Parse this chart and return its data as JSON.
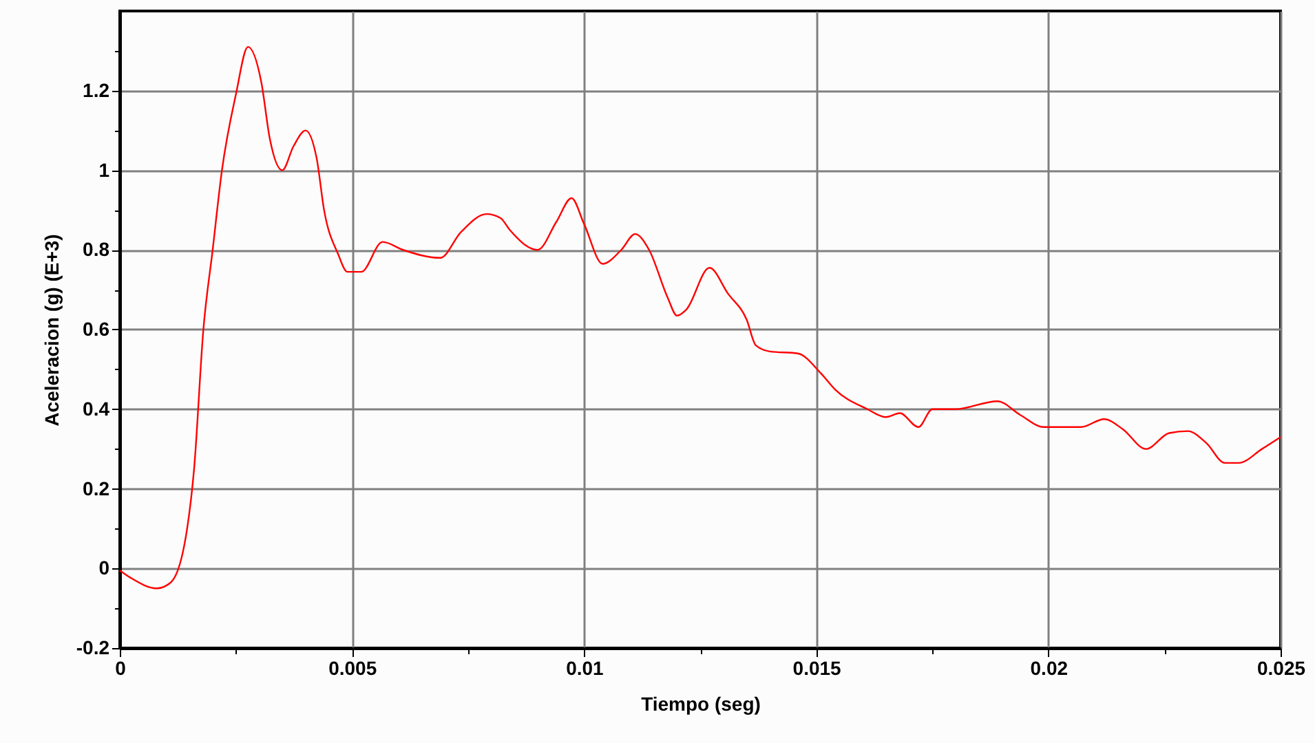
{
  "chart_data": {
    "type": "line",
    "xlabel": "Tiempo (seg)",
    "ylabel": "Aceleracion (g) (E+3)",
    "x": [
      0,
      0.00024,
      0.0008,
      0.0011,
      0.00145,
      0.0016,
      0.0018,
      0.002,
      0.0022,
      0.0025,
      0.00276,
      0.00305,
      0.00323,
      0.0035,
      0.00374,
      0.004,
      0.00424,
      0.0044,
      0.0047,
      0.0049,
      0.0052,
      0.00566,
      0.0061,
      0.0069,
      0.00735,
      0.0079,
      0.0082,
      0.0084,
      0.009,
      0.0094,
      0.00973,
      0.01,
      0.0104,
      0.0108,
      0.0111,
      0.0114,
      0.0118,
      0.012,
      0.0122,
      0.0127,
      0.0131,
      0.0135,
      0.0137,
      0.014,
      0.0146,
      0.0151,
      0.0154,
      0.0161,
      0.0165,
      0.0168,
      0.0172,
      0.0175,
      0.018,
      0.0189,
      0.0194,
      0.0199,
      0.0207,
      0.0212,
      0.0216,
      0.0221,
      0.0226,
      0.023,
      0.0234,
      0.0238,
      0.0241,
      0.0246,
      0.025
    ],
    "series": [
      {
        "color": "#ff0000",
        "values": [
          -0.005,
          -0.024,
          -0.05,
          -0.035,
          0.1,
          0.25,
          0.6,
          0.8,
          1.0,
          1.19,
          1.31,
          1.22,
          1.08,
          1.0,
          1.06,
          1.1,
          1.03,
          0.9,
          0.79,
          0.745,
          0.745,
          0.82,
          0.8,
          0.78,
          0.845,
          0.89,
          0.88,
          0.85,
          0.8,
          0.87,
          0.93,
          0.865,
          0.765,
          0.8,
          0.84,
          0.8,
          0.68,
          0.635,
          0.65,
          0.755,
          0.69,
          0.625,
          0.56,
          0.545,
          0.54,
          0.49,
          0.45,
          0.4,
          0.38,
          0.39,
          0.355,
          0.4,
          0.4,
          0.42,
          0.385,
          0.355,
          0.355,
          0.375,
          0.35,
          0.3,
          0.34,
          0.345,
          0.315,
          0.265,
          0.265,
          0.3,
          0.33
        ]
      }
    ],
    "xlim": [
      0,
      0.025
    ],
    "xticks": [
      0,
      {
        "value": 0.0025,
        "label": null
      },
      0.005,
      {
        "value": 0.0075,
        "label": null
      },
      0.01,
      {
        "value": 0.0125,
        "label": null
      },
      0.015,
      {
        "value": 0.0175,
        "label": null
      },
      0.02,
      {
        "value": 0.0225,
        "label": null
      },
      0.025
    ],
    "ylim": [
      -0.2,
      1.4
    ],
    "yticks": [
      -0.2,
      {
        "value": -0.1,
        "label": null
      },
      0,
      {
        "value": 0.1,
        "label": null
      },
      0.2,
      {
        "value": 0.3,
        "label": null
      },
      0.4,
      {
        "value": 0.5,
        "label": null
      },
      0.6,
      {
        "value": 0.7,
        "label": null
      },
      0.8,
      {
        "value": 0.9,
        "label": null
      },
      1,
      {
        "value": 1.1,
        "label": null
      },
      1.2,
      {
        "value": 1.3,
        "label": null
      }
    ],
    "grid": true,
    "marker": "none",
    "line_style": "solid"
  }
}
